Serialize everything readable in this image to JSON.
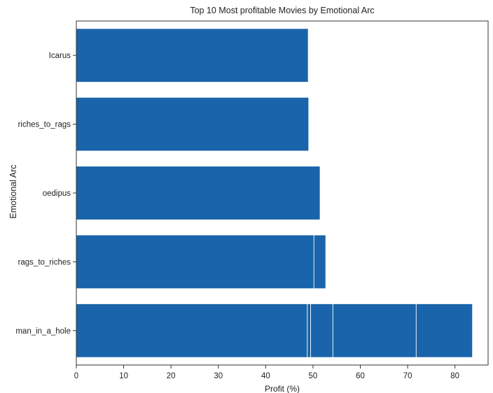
{
  "chart_data": {
    "type": "bar",
    "orientation": "horizontal",
    "title": "Top 10 Most profitable Movies by Emotional Arc",
    "xlabel": "Profit (%)",
    "ylabel": "Emotional Arc",
    "xlim": [
      0,
      87
    ],
    "xticks": [
      0,
      10,
      20,
      30,
      40,
      50,
      60,
      70,
      80
    ],
    "categories": [
      "man_in_a_hole",
      "rags_to_riches",
      "oedipus",
      "riches_to_rags",
      "Icarus"
    ],
    "bars": [
      {
        "category": "man_in_a_hole",
        "value": 83.7
      },
      {
        "category": "man_in_a_hole",
        "value": 71.8
      },
      {
        "category": "man_in_a_hole",
        "value": 54.2
      },
      {
        "category": "man_in_a_hole",
        "value": 49.5
      },
      {
        "category": "man_in_a_hole",
        "value": 48.8
      },
      {
        "category": "rags_to_riches",
        "value": 52.7
      },
      {
        "category": "rags_to_riches",
        "value": 50.2
      },
      {
        "category": "oedipus",
        "value": 51.5
      },
      {
        "category": "riches_to_rags",
        "value": 49.1
      },
      {
        "category": "Icarus",
        "value": 49.0
      }
    ],
    "bar_color": "#1964aa",
    "grid": false,
    "legend": "none"
  }
}
